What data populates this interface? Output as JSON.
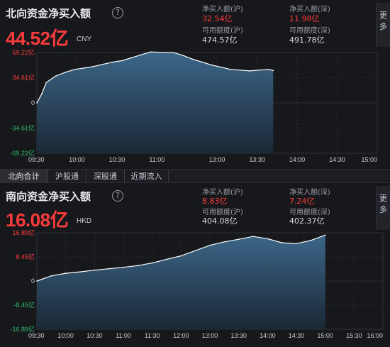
{
  "north": {
    "title": "北向资金净买入额",
    "help": "?",
    "value": "44.52亿",
    "unit": "CNY",
    "sh_buy_label": "净买入额(沪)",
    "sh_buy_value": "32.54亿",
    "sz_buy_label": "净买入额(深)",
    "sz_buy_value": "11.98亿",
    "sh_quota_label": "可用额度(沪)",
    "sh_quota_value": "474.57亿",
    "sz_quota_label": "可用额度(深)",
    "sz_quota_value": "491.78亿",
    "more": "更多"
  },
  "tabs": [
    "北向合计",
    "沪股通",
    "深股通",
    "近期流入"
  ],
  "south": {
    "title": "南向资金净买入额",
    "help": "?",
    "value": "16.08亿",
    "unit": "HKD",
    "sh_buy_label": "净买入额(沪)",
    "sh_buy_value": "8.83亿",
    "sz_buy_label": "净买入额(深)",
    "sz_buy_value": "7.24亿",
    "sh_quota_label": "可用额度(沪)",
    "sh_quota_value": "404.08亿",
    "sz_quota_label": "可用额度(深)",
    "sz_quota_value": "402.37亿",
    "more": "更多"
  },
  "colors": {
    "up": "#ff3b3b",
    "area": "#2f5573",
    "line": "#ffffff"
  },
  "chart_data": [
    {
      "type": "area",
      "name": "north",
      "yticks": [
        "69.22亿",
        "34.61亿",
        "0",
        "-34.61亿",
        "-69.22亿"
      ],
      "ylim": [
        -69.22,
        69.22
      ],
      "xticks": [
        "09:30",
        "10:00",
        "10:30",
        "11:00",
        "13:00",
        "13:30",
        "14:00",
        "14:30",
        "15:00"
      ],
      "x": [
        "09:30",
        "09:35",
        "09:40",
        "09:50",
        "10:00",
        "10:10",
        "10:20",
        "10:30",
        "10:40",
        "10:50",
        "11:00",
        "11:10",
        "11:20",
        "11:30",
        "13:10",
        "13:20",
        "13:30",
        "13:40",
        "13:50",
        "14:00",
        "14:10",
        "14:20",
        "14:30",
        "14:40",
        "14:50",
        "14:55"
      ],
      "values": [
        0,
        12,
        28,
        37,
        42,
        46,
        48,
        50,
        53,
        56,
        58,
        62,
        66,
        70,
        69,
        65,
        60,
        56,
        52,
        49,
        46,
        45,
        44,
        45,
        46,
        44.52
      ]
    },
    {
      "type": "area",
      "name": "south",
      "yticks": [
        "16.89亿",
        "8.45亿",
        "0",
        "-8.45亿",
        "-16.89亿"
      ],
      "ylim": [
        -16.89,
        16.89
      ],
      "xticks": [
        "09:30",
        "10:00",
        "10:30",
        "11:00",
        "11:30",
        "12:00",
        "13:00",
        "13:30",
        "14:00",
        "14:30",
        "15:00",
        "15:30",
        "16:00"
      ],
      "x": [
        "09:30",
        "09:45",
        "10:00",
        "10:15",
        "10:30",
        "10:45",
        "11:00",
        "11:15",
        "11:30",
        "11:45",
        "12:00",
        "13:00",
        "13:15",
        "13:30",
        "13:45",
        "14:00",
        "14:15",
        "14:30",
        "14:45",
        "15:00"
      ],
      "values": [
        0,
        1.8,
        2.7,
        3.2,
        3.8,
        4.3,
        4.8,
        5.4,
        6.3,
        7.6,
        8.8,
        12.5,
        13.7,
        14.6,
        15.6,
        14.8,
        13.4,
        13.1,
        14.2,
        16.08
      ]
    }
  ]
}
